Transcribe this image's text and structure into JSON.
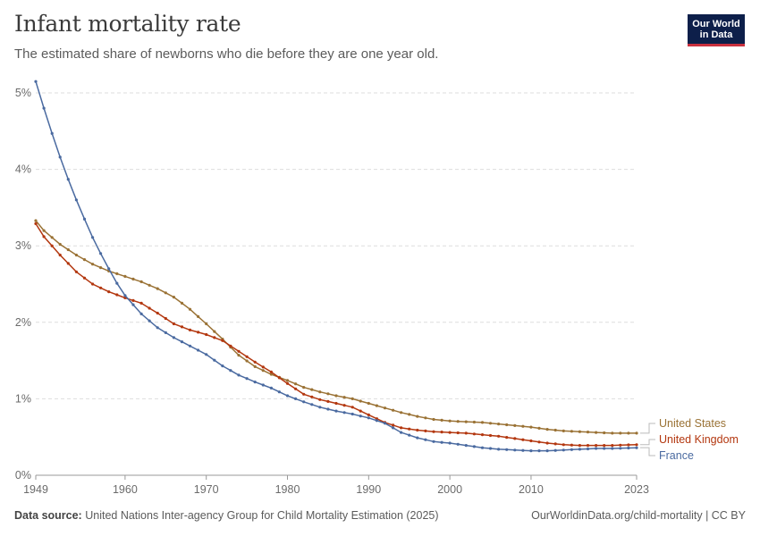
{
  "header": {
    "title": "Infant mortality rate",
    "subtitle": "The estimated share of newborns who die before they are one year old.",
    "logo_line1": "Our World",
    "logo_line2": "in Data"
  },
  "footer": {
    "source_label": "Data source:",
    "source_text": "United Nations Inter-agency Group for Child Mortality Estimation (2025)",
    "link_text": "OurWorldinData.org/child-mortality | CC BY"
  },
  "chart_data": {
    "type": "line",
    "ylim": [
      0,
      5
    ],
    "xlim": [
      1949,
      2023
    ],
    "y_ticks": [
      0,
      1,
      2,
      3,
      4,
      5
    ],
    "y_tick_labels": [
      "0%",
      "1%",
      "2%",
      "3%",
      "4%",
      "5%"
    ],
    "x_ticks": [
      1949,
      1960,
      1970,
      1980,
      1990,
      2000,
      2010,
      2023
    ],
    "x_tick_labels": [
      "1949",
      "1960",
      "1970",
      "1980",
      "1990",
      "2000",
      "2010",
      "2023"
    ],
    "grid": "horizontal dashed",
    "legend": "right, labels at line ends",
    "series": [
      {
        "name": "United States",
        "color": "#9a7235",
        "label_color": "#9a7235",
        "points": [
          [
            1949,
            3.33
          ],
          [
            1950,
            3.2
          ],
          [
            1952,
            3.02
          ],
          [
            1954,
            2.88
          ],
          [
            1956,
            2.76
          ],
          [
            1958,
            2.67
          ],
          [
            1960,
            2.6
          ],
          [
            1962,
            2.53
          ],
          [
            1964,
            2.44
          ],
          [
            1966,
            2.33
          ],
          [
            1968,
            2.17
          ],
          [
            1970,
            1.98
          ],
          [
            1972,
            1.78
          ],
          [
            1974,
            1.57
          ],
          [
            1976,
            1.42
          ],
          [
            1978,
            1.32
          ],
          [
            1980,
            1.24
          ],
          [
            1982,
            1.15
          ],
          [
            1984,
            1.09
          ],
          [
            1986,
            1.04
          ],
          [
            1988,
            1.0
          ],
          [
            1990,
            0.94
          ],
          [
            1992,
            0.88
          ],
          [
            1994,
            0.82
          ],
          [
            1996,
            0.77
          ],
          [
            1998,
            0.73
          ],
          [
            2000,
            0.71
          ],
          [
            2002,
            0.7
          ],
          [
            2004,
            0.69
          ],
          [
            2006,
            0.67
          ],
          [
            2008,
            0.65
          ],
          [
            2010,
            0.63
          ],
          [
            2012,
            0.6
          ],
          [
            2014,
            0.58
          ],
          [
            2016,
            0.57
          ],
          [
            2018,
            0.56
          ],
          [
            2020,
            0.55
          ],
          [
            2023,
            0.55
          ]
        ]
      },
      {
        "name": "United Kingdom",
        "color": "#b3370f",
        "label_color": "#b3370f",
        "points": [
          [
            1949,
            3.29
          ],
          [
            1950,
            3.12
          ],
          [
            1952,
            2.88
          ],
          [
            1954,
            2.66
          ],
          [
            1956,
            2.5
          ],
          [
            1958,
            2.4
          ],
          [
            1960,
            2.32
          ],
          [
            1962,
            2.25
          ],
          [
            1964,
            2.12
          ],
          [
            1966,
            1.98
          ],
          [
            1968,
            1.9
          ],
          [
            1970,
            1.84
          ],
          [
            1972,
            1.76
          ],
          [
            1974,
            1.62
          ],
          [
            1976,
            1.48
          ],
          [
            1978,
            1.35
          ],
          [
            1980,
            1.2
          ],
          [
            1982,
            1.06
          ],
          [
            1984,
            0.99
          ],
          [
            1986,
            0.94
          ],
          [
            1988,
            0.89
          ],
          [
            1990,
            0.79
          ],
          [
            1992,
            0.69
          ],
          [
            1994,
            0.62
          ],
          [
            1996,
            0.59
          ],
          [
            1998,
            0.57
          ],
          [
            2000,
            0.56
          ],
          [
            2002,
            0.55
          ],
          [
            2004,
            0.53
          ],
          [
            2006,
            0.51
          ],
          [
            2008,
            0.48
          ],
          [
            2010,
            0.45
          ],
          [
            2012,
            0.42
          ],
          [
            2014,
            0.4
          ],
          [
            2016,
            0.39
          ],
          [
            2018,
            0.39
          ],
          [
            2020,
            0.39
          ],
          [
            2023,
            0.4
          ]
        ]
      },
      {
        "name": "France",
        "color": "#4a6aa0",
        "label_color": "#4a6aa0",
        "points": [
          [
            1949,
            5.15
          ],
          [
            1950,
            4.8
          ],
          [
            1951,
            4.47
          ],
          [
            1952,
            4.16
          ],
          [
            1953,
            3.87
          ],
          [
            1954,
            3.6
          ],
          [
            1955,
            3.35
          ],
          [
            1956,
            3.11
          ],
          [
            1957,
            2.9
          ],
          [
            1958,
            2.7
          ],
          [
            1959,
            2.51
          ],
          [
            1960,
            2.35
          ],
          [
            1962,
            2.11
          ],
          [
            1964,
            1.93
          ],
          [
            1966,
            1.8
          ],
          [
            1968,
            1.69
          ],
          [
            1970,
            1.58
          ],
          [
            1972,
            1.43
          ],
          [
            1974,
            1.31
          ],
          [
            1976,
            1.22
          ],
          [
            1978,
            1.14
          ],
          [
            1980,
            1.04
          ],
          [
            1982,
            0.96
          ],
          [
            1984,
            0.89
          ],
          [
            1986,
            0.84
          ],
          [
            1988,
            0.8
          ],
          [
            1990,
            0.75
          ],
          [
            1992,
            0.68
          ],
          [
            1994,
            0.56
          ],
          [
            1996,
            0.49
          ],
          [
            1998,
            0.44
          ],
          [
            2000,
            0.42
          ],
          [
            2002,
            0.39
          ],
          [
            2004,
            0.36
          ],
          [
            2006,
            0.34
          ],
          [
            2008,
            0.33
          ],
          [
            2010,
            0.32
          ],
          [
            2012,
            0.32
          ],
          [
            2014,
            0.33
          ],
          [
            2016,
            0.34
          ],
          [
            2018,
            0.35
          ],
          [
            2020,
            0.35
          ],
          [
            2023,
            0.36
          ]
        ]
      }
    ]
  }
}
